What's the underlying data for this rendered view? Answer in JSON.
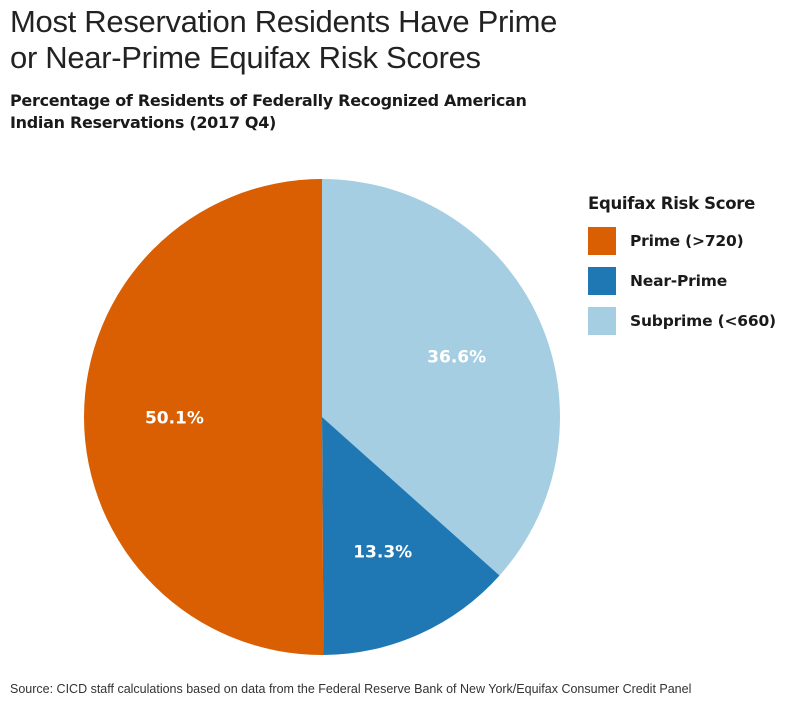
{
  "chart_data": {
    "type": "pie",
    "title": "Most Reservation Residents Have Prime or Near-Prime Equifax Risk Scores",
    "subtitle": "Percentage of Residents of Federally Recognized American Indian Reservations (2017 Q4)",
    "legend_title": "Equifax Risk Score",
    "legend_position": "right",
    "categories": [
      "Prime (>720)",
      "Near-Prime",
      "Subprime (<660)"
    ],
    "values": [
      50.1,
      13.3,
      36.6
    ],
    "labels": [
      "50.1%",
      "13.3%",
      "36.6%"
    ],
    "colors": [
      "#d95f02",
      "#1f78b4",
      "#a6cee3"
    ],
    "source": "Source: CICD staff calculations based on data from the Federal Reserve Bank of New York/Equifax Consumer Credit Panel"
  }
}
